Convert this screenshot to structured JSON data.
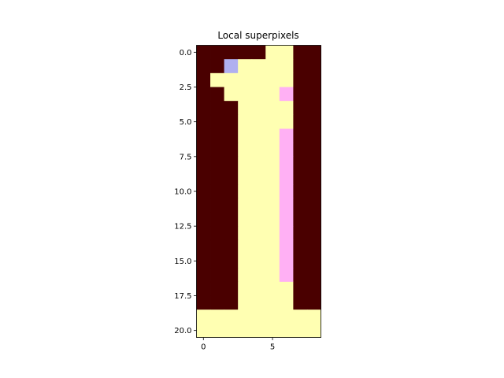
{
  "chart_data": {
    "type": "heatmap",
    "title": "Local superpixels",
    "xlabel": "",
    "ylabel": "",
    "rows": 21,
    "cols": 9,
    "xlim": [
      -0.5,
      8.5
    ],
    "ylim": [
      20.5,
      -0.5
    ],
    "xticks": [
      0,
      5
    ],
    "xtick_labels": [
      "0",
      "5"
    ],
    "yticks": [
      0,
      2.5,
      5,
      7.5,
      10,
      12.5,
      15,
      17.5,
      20
    ],
    "ytick_labels": [
      "0.0",
      "2.5",
      "5.0",
      "7.5",
      "10.0",
      "12.5",
      "15.0",
      "17.5",
      "20.0"
    ],
    "grid": false,
    "palette": {
      "0": "#4a0000",
      "1": "#ffffb2",
      "2": "#ffb0f4",
      "3": "#b0b0f0"
    },
    "matrix": [
      [
        0,
        0,
        0,
        0,
        0,
        1,
        1,
        0,
        0
      ],
      [
        0,
        0,
        3,
        1,
        1,
        1,
        1,
        0,
        0
      ],
      [
        0,
        1,
        1,
        1,
        1,
        1,
        1,
        0,
        0
      ],
      [
        0,
        0,
        1,
        1,
        1,
        1,
        2,
        0,
        0
      ],
      [
        0,
        0,
        0,
        1,
        1,
        1,
        1,
        0,
        0
      ],
      [
        0,
        0,
        0,
        1,
        1,
        1,
        1,
        0,
        0
      ],
      [
        0,
        0,
        0,
        1,
        1,
        1,
        2,
        0,
        0
      ],
      [
        0,
        0,
        0,
        1,
        1,
        1,
        2,
        0,
        0
      ],
      [
        0,
        0,
        0,
        1,
        1,
        1,
        2,
        0,
        0
      ],
      [
        0,
        0,
        0,
        1,
        1,
        1,
        2,
        0,
        0
      ],
      [
        0,
        0,
        0,
        1,
        1,
        1,
        2,
        0,
        0
      ],
      [
        0,
        0,
        0,
        1,
        1,
        1,
        2,
        0,
        0
      ],
      [
        0,
        0,
        0,
        1,
        1,
        1,
        2,
        0,
        0
      ],
      [
        0,
        0,
        0,
        1,
        1,
        1,
        2,
        0,
        0
      ],
      [
        0,
        0,
        0,
        1,
        1,
        1,
        2,
        0,
        0
      ],
      [
        0,
        0,
        0,
        1,
        1,
        1,
        2,
        0,
        0
      ],
      [
        0,
        0,
        0,
        1,
        1,
        1,
        2,
        0,
        0
      ],
      [
        0,
        0,
        0,
        1,
        1,
        1,
        1,
        0,
        0
      ],
      [
        0,
        0,
        0,
        1,
        1,
        1,
        1,
        0,
        0
      ],
      [
        1,
        1,
        1,
        1,
        1,
        1,
        1,
        1,
        1
      ],
      [
        1,
        1,
        1,
        1,
        1,
        1,
        1,
        1,
        1
      ]
    ]
  }
}
